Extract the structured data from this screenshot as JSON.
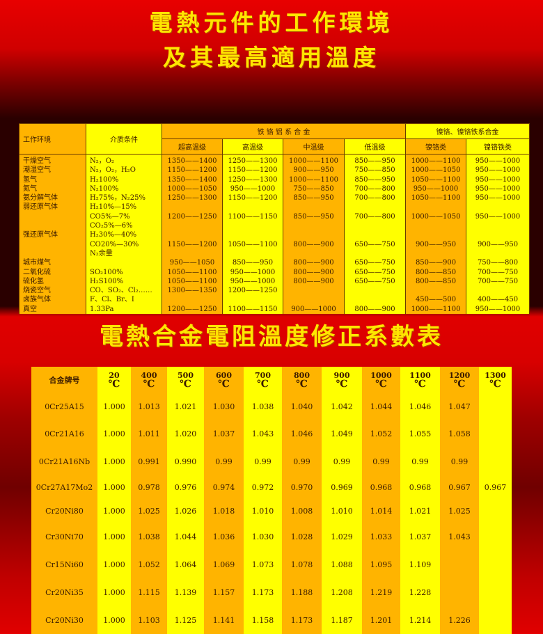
{
  "titles": {
    "line1": "電熱元件的工作環境",
    "line2": "及其最高適用溫度",
    "line3": "電熱合金電阻溫度修正系數表"
  },
  "colors": {
    "orange": "#ffb400",
    "yellow": "#ffff00",
    "title": "#ffe600",
    "background": "#e00000"
  },
  "env_table": {
    "h_env": "工作环境",
    "h_medium": "介质条件",
    "h_group1": "铁 铬 铝 系 合 金",
    "h_group2": "镍铬、镍铬铁系合金",
    "sub": [
      "超高温级",
      "高温级",
      "中温级",
      "低温级",
      "镍铬类",
      "镍铬铁类"
    ],
    "lines": [
      [
        "干燥空气",
        "N₂，O₂",
        "1350——1400",
        "1250——1300",
        "1000——1100",
        "850——950",
        "1000——1100",
        "950——1000"
      ],
      [
        "潮湿空气",
        "N₂，O₂，H₂O",
        "1150——1200",
        "1150——1200",
        "900——950",
        "750——850",
        "1000——1050",
        "950——1000"
      ],
      [
        "氢气",
        "H₂100%",
        "1350——1400",
        "1250——1300",
        "1000——1100",
        "850——950",
        "1050——1100",
        "950——1000"
      ],
      [
        "氮气",
        "N₂100%",
        "1000——1050",
        "950——1000",
        "750——850",
        "700——800",
        "950——1000",
        "950——1000"
      ],
      [
        "氨分解气体",
        "H₂75%，N₂25%",
        "1250——1300",
        "1150——1200",
        "850——950",
        "700——800",
        "1050——1100",
        "950——1000"
      ],
      [
        "弱还原气体",
        "H₂10%—15%",
        "",
        "",
        "",
        "",
        "",
        ""
      ],
      [
        "",
        "CO5%—7%",
        "1200——1250",
        "1100——1150",
        "850——950",
        "700——800",
        "1000——1050",
        "950——1000"
      ],
      [
        "",
        "CO₂5%—6%",
        "",
        "",
        "",
        "",
        "",
        ""
      ],
      [
        "强还原气体",
        "H₂30%—40%",
        "",
        "",
        "",
        "",
        "",
        ""
      ],
      [
        "",
        "CO20%—30%",
        "1150——1200",
        "1050——1100",
        "800——900",
        "650——750",
        "900——950",
        "900——950"
      ],
      [
        "",
        "N₂余量",
        "",
        "",
        "",
        "",
        "",
        ""
      ],
      [
        "城市煤气",
        "",
        "950——1050",
        "850——950",
        "800——900",
        "650——750",
        "850——900",
        "750——800"
      ],
      [
        "二氧化硫",
        "SO₂100%",
        "1050——1100",
        "950——1000",
        "800——900",
        "650——750",
        "800——850",
        "700——750"
      ],
      [
        "硫化氢",
        "H₂S100%",
        "1050——1100",
        "950——1000",
        "800——900",
        "650——750",
        "800——850",
        "700——750"
      ],
      [
        "烧瓷空气",
        "CO、SO₂、Cl₂……",
        "1300——1350",
        "1200——1250",
        "",
        "",
        "",
        ""
      ],
      [
        "卤族气体",
        "F、Cl、Br、I",
        "",
        "",
        "",
        "",
        "450——500",
        "400——450"
      ],
      [
        "真空",
        "1.33Pa",
        "1200——1250",
        "1100——1150",
        "900——1000",
        "800——900",
        "1000——1100",
        "950——1000"
      ]
    ]
  },
  "coef_table": {
    "h_name": "合金牌号",
    "temps": [
      "20",
      "400",
      "500",
      "600",
      "700",
      "800",
      "900",
      "1000",
      "1100",
      "1200",
      "1300"
    ],
    "unit": "℃",
    "rows": [
      [
        "0Cr25A15",
        "1.000",
        "1.013",
        "1.021",
        "1.030",
        "1.038",
        "1.040",
        "1.042",
        "1.044",
        "1.046",
        "1.047",
        ""
      ],
      [
        "0Cr21A16",
        "1.000",
        "1.011",
        "1.020",
        "1.037",
        "1.043",
        "1.046",
        "1.049",
        "1.052",
        "1.055",
        "1.058",
        ""
      ],
      [
        "0Cr21A16Nb",
        "1.000",
        "0.991",
        "0.990",
        "0.99",
        "0.99",
        "0.99",
        "0.99",
        "0.99",
        "0.99",
        "0.99",
        ""
      ],
      [
        "0Cr27A17Mo2",
        "1.000",
        "0.978",
        "0.976",
        "0.974",
        "0.972",
        "0.970",
        "0.969",
        "0.968",
        "0.968",
        "0.967",
        "0.967"
      ],
      [
        "Cr20Ni80",
        "1.000",
        "1.025",
        "1.026",
        "1.018",
        "1.010",
        "1.008",
        "1.010",
        "1.014",
        "1.021",
        "1.025",
        ""
      ],
      [
        "Cr30Ni70",
        "1.000",
        "1.038",
        "1.044",
        "1.036",
        "1.030",
        "1.028",
        "1.029",
        "1.033",
        "1.037",
        "1.043",
        ""
      ],
      [
        "Cr15Ni60",
        "1.000",
        "1.052",
        "1.064",
        "1.069",
        "1.073",
        "1.078",
        "1.088",
        "1.095",
        "1.109",
        "",
        ""
      ],
      [
        "Cr20Ni35",
        "1.000",
        "1.115",
        "1.139",
        "1.157",
        "1.173",
        "1.188",
        "1.208",
        "1.219",
        "1.228",
        "",
        ""
      ],
      [
        "Cr20Ni30",
        "1.000",
        "1.103",
        "1.125",
        "1.141",
        "1.158",
        "1.173",
        "1.187",
        "1.201",
        "1.214",
        "1.226",
        ""
      ]
    ]
  }
}
